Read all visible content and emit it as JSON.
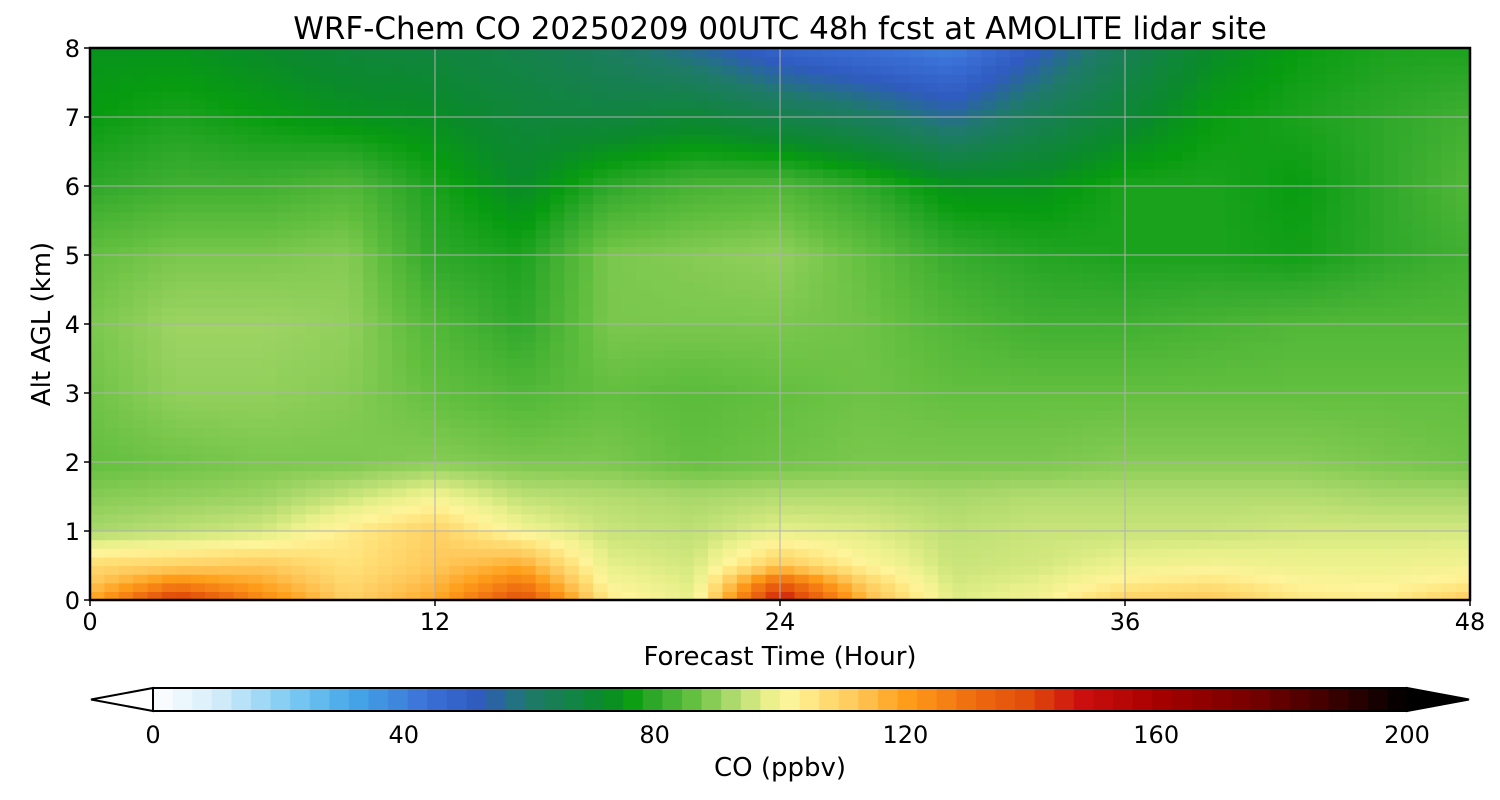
{
  "chart_data": {
    "type": "heatmap",
    "title": "WRF-Chem CO  20250209 00UTC 48h fcst at AMOLITE lidar site",
    "xlabel": "Forecast Time (Hour)",
    "ylabel": "Alt AGL (km)",
    "xlim": [
      0,
      48
    ],
    "ylim": [
      0,
      8
    ],
    "xticks": [
      0,
      12,
      24,
      36,
      48
    ],
    "yticks": [
      0,
      1,
      2,
      3,
      4,
      5,
      6,
      7,
      8
    ],
    "grid": true,
    "x": [
      0,
      3,
      6,
      9,
      12,
      15,
      18,
      21,
      24,
      27,
      30,
      33,
      36,
      39,
      42,
      45,
      48
    ],
    "y": [
      0,
      0.25,
      0.5,
      1,
      1.5,
      2,
      3,
      4,
      5,
      6,
      7,
      8
    ],
    "values": [
      [
        118,
        145,
        125,
        110,
        118,
        140,
        104,
        98,
        150,
        115,
        97,
        100,
        110,
        112,
        105,
        104,
        112
      ],
      [
        112,
        125,
        118,
        108,
        115,
        128,
        101,
        97,
        135,
        110,
        96,
        98,
        104,
        106,
        102,
        101,
        104
      ],
      [
        108,
        110,
        112,
        106,
        112,
        118,
        98,
        96,
        112,
        102,
        95,
        96,
        99,
        100,
        99,
        99,
        100
      ],
      [
        92,
        94,
        96,
        104,
        110,
        100,
        95,
        94,
        98,
        97,
        94,
        95,
        95,
        95,
        96,
        96,
        96
      ],
      [
        89,
        90,
        91,
        95,
        100,
        94,
        93,
        92,
        93,
        93,
        92,
        93,
        93,
        93,
        93,
        92,
        92
      ],
      [
        86,
        87,
        88,
        88,
        89,
        88,
        88,
        86,
        87,
        88,
        88,
        88,
        89,
        89,
        89,
        88,
        87
      ],
      [
        87,
        90,
        90,
        89,
        86,
        84,
        86,
        85,
        86,
        87,
        86,
        86,
        86,
        86,
        86,
        86,
        86
      ],
      [
        88,
        91,
        91,
        90,
        84,
        80,
        88,
        88,
        88,
        87,
        84,
        82,
        82,
        83,
        84,
        84,
        84
      ],
      [
        86,
        88,
        88,
        89,
        80,
        78,
        88,
        89,
        90,
        86,
        81,
        79,
        78,
        78,
        77,
        80,
        82
      ],
      [
        80,
        82,
        82,
        84,
        78,
        72,
        80,
        83,
        84,
        80,
        74,
        74,
        78,
        78,
        76,
        80,
        84
      ],
      [
        76,
        78,
        76,
        74,
        73,
        69,
        68,
        70,
        66,
        62,
        56,
        64,
        70,
        76,
        78,
        80,
        82
      ],
      [
        74,
        74,
        72,
        69,
        68,
        66,
        62,
        56,
        48,
        44,
        40,
        52,
        64,
        72,
        76,
        78,
        78
      ]
    ],
    "colorbar": {
      "label": "CO  (ppbv)",
      "min": 0,
      "max": 200,
      "ticks": [
        0,
        40,
        80,
        120,
        160,
        200
      ],
      "extend": "both"
    }
  }
}
